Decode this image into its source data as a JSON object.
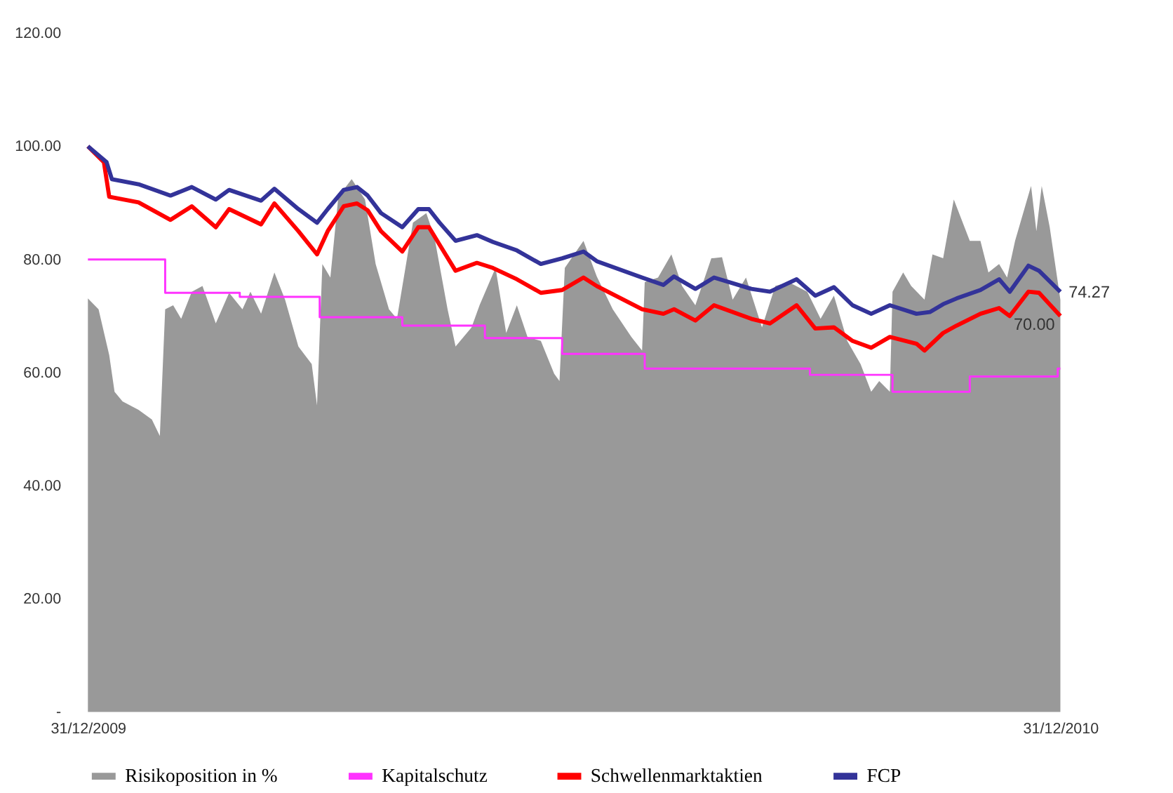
{
  "chart_data": {
    "type": "line",
    "xlim": [
      "2009-12-31",
      "2010-12-31"
    ],
    "xticks": [
      {
        "value": "2009-12-31",
        "label": "31/12/2009"
      },
      {
        "value": "2010-12-31",
        "label": "31/12/2010"
      }
    ],
    "ylim": [
      0,
      120
    ],
    "yticks": [
      {
        "value": 0,
        "label": "-"
      },
      {
        "value": 20,
        "label": "20.00"
      },
      {
        "value": 40,
        "label": "40.00"
      },
      {
        "value": 60,
        "label": "60.00"
      },
      {
        "value": 80,
        "label": "80.00"
      },
      {
        "value": 100,
        "label": "100.00"
      },
      {
        "value": 120,
        "label": "120.00"
      }
    ],
    "grid": false,
    "legend": "bottom",
    "line_style": "solid",
    "marker": "none",
    "series": [
      {
        "name": "Risikoposition in %",
        "type": "area",
        "color": "#999999",
        "x": [
          "2009-12-31",
          "2010-01-04",
          "2010-01-08",
          "2010-01-10",
          "2010-01-13",
          "2010-01-19",
          "2010-01-24",
          "2010-01-27",
          "2010-01-29",
          "2010-02-01",
          "2010-02-04",
          "2010-02-08",
          "2010-02-12",
          "2010-02-17",
          "2010-02-22",
          "2010-02-27",
          "2010-03-02",
          "2010-03-06",
          "2010-03-11",
          "2010-03-15",
          "2010-03-20",
          "2010-03-25",
          "2010-03-27",
          "2010-03-29",
          "2010-04-01",
          "2010-04-04",
          "2010-04-09",
          "2010-04-14",
          "2010-04-18",
          "2010-04-23",
          "2010-04-26",
          "2010-05-02",
          "2010-05-07",
          "2010-05-10",
          "2010-05-15",
          "2010-05-18",
          "2010-05-24",
          "2010-05-27",
          "2010-06-02",
          "2010-06-06",
          "2010-06-10",
          "2010-06-14",
          "2010-06-19",
          "2010-06-24",
          "2010-06-26",
          "2010-06-28",
          "2010-07-05",
          "2010-07-10",
          "2010-07-16",
          "2010-07-23",
          "2010-07-27",
          "2010-07-28",
          "2010-08-02",
          "2010-08-07",
          "2010-08-11",
          "2010-08-16",
          "2010-08-22",
          "2010-08-26",
          "2010-08-30",
          "2010-09-04",
          "2010-09-10",
          "2010-09-15",
          "2010-09-20",
          "2010-09-27",
          "2010-10-02",
          "2010-10-07",
          "2010-10-12",
          "2010-10-17",
          "2010-10-21",
          "2010-10-24",
          "2010-10-28",
          "2010-10-29",
          "2010-11-02",
          "2010-11-05",
          "2010-11-10",
          "2010-11-13",
          "2010-11-17",
          "2010-11-21",
          "2010-11-27",
          "2010-12-01",
          "2010-12-04",
          "2010-12-08",
          "2010-12-11",
          "2010-12-14",
          "2010-12-20",
          "2010-12-22",
          "2010-12-24",
          "2010-12-27",
          "2010-12-31"
        ],
        "values": [
          73.1,
          71.2,
          63.1,
          56.6,
          54.9,
          53.4,
          51.7,
          48.8,
          71.2,
          71.9,
          69.5,
          74.3,
          75.3,
          68.7,
          74.1,
          71.2,
          74.3,
          70.4,
          77.7,
          72.9,
          64.6,
          61.5,
          54.2,
          79.2,
          76.8,
          91.1,
          94.2,
          90.6,
          79.2,
          71.2,
          69.5,
          86.5,
          88.2,
          84.1,
          71.2,
          64.6,
          68.0,
          71.9,
          78.5,
          67.0,
          71.9,
          66.3,
          65.6,
          59.8,
          58.5,
          78.5,
          83.3,
          77.0,
          71.2,
          66.3,
          63.9,
          76.0,
          76.8,
          80.9,
          75.3,
          71.9,
          80.2,
          80.4,
          72.9,
          76.8,
          68.0,
          75.3,
          76.0,
          74.3,
          69.5,
          73.6,
          65.6,
          61.5,
          56.6,
          58.5,
          56.6,
          74.3,
          77.7,
          75.3,
          72.9,
          80.9,
          80.2,
          90.6,
          83.3,
          83.3,
          77.7,
          79.2,
          76.8,
          83.3,
          93.0,
          85.0,
          93.0,
          85.7,
          72.9
        ]
      },
      {
        "name": "Kapitalschutz",
        "type": "step",
        "color": "#ff33ff",
        "x": [
          "2009-12-31",
          "2010-01-29",
          "2010-02-26",
          "2010-03-28",
          "2010-04-28",
          "2010-05-29",
          "2010-06-27",
          "2010-07-28",
          "2010-09-28",
          "2010-10-29",
          "2010-11-27",
          "2010-12-30",
          "2010-12-31"
        ],
        "values": [
          80.0,
          74.1,
          73.4,
          69.8,
          68.3,
          66.1,
          63.3,
          60.7,
          59.6,
          56.6,
          59.3,
          60.7,
          60.7
        ]
      },
      {
        "name": "Schwellenmarktaktien",
        "color": "#ff0000",
        "x": [
          "2009-12-31",
          "2010-01-06",
          "2010-01-08",
          "2010-01-19",
          "2010-01-31",
          "2010-02-08",
          "2010-02-17",
          "2010-02-22",
          "2010-03-06",
          "2010-03-11",
          "2010-03-20",
          "2010-03-27",
          "2010-03-31",
          "2010-04-06",
          "2010-04-11",
          "2010-04-15",
          "2010-04-20",
          "2010-04-28",
          "2010-05-04",
          "2010-05-08",
          "2010-05-12",
          "2010-05-18",
          "2010-05-26",
          "2010-06-01",
          "2010-06-10",
          "2010-06-19",
          "2010-06-27",
          "2010-07-05",
          "2010-07-10",
          "2010-07-27",
          "2010-08-04",
          "2010-08-08",
          "2010-08-16",
          "2010-08-23",
          "2010-09-06",
          "2010-09-13",
          "2010-09-23",
          "2010-09-30",
          "2010-10-07",
          "2010-10-14",
          "2010-10-21",
          "2010-10-28",
          "2010-11-07",
          "2010-11-10",
          "2010-11-17",
          "2010-11-22",
          "2010-12-01",
          "2010-12-08",
          "2010-12-12",
          "2010-12-19",
          "2010-12-23",
          "2010-12-31"
        ],
        "values": [
          100.0,
          97.2,
          91.1,
          90.1,
          87.0,
          89.4,
          85.7,
          88.9,
          86.2,
          89.9,
          85.0,
          80.9,
          85.0,
          89.4,
          89.9,
          88.7,
          85.0,
          81.4,
          85.7,
          85.7,
          82.6,
          78.0,
          79.4,
          78.5,
          76.5,
          74.1,
          74.6,
          76.8,
          75.3,
          71.2,
          70.4,
          71.2,
          69.2,
          71.9,
          69.5,
          68.7,
          71.9,
          67.8,
          68.0,
          65.6,
          64.4,
          66.3,
          65.1,
          63.9,
          67.0,
          68.3,
          70.4,
          71.4,
          70.0,
          74.3,
          74.1,
          70.0
        ]
      },
      {
        "name": "FCP",
        "color": "#333399",
        "x": [
          "2009-12-31",
          "2010-01-07",
          "2010-01-09",
          "2010-01-19",
          "2010-01-31",
          "2010-02-08",
          "2010-02-17",
          "2010-02-22",
          "2010-03-06",
          "2010-03-11",
          "2010-03-20",
          "2010-03-27",
          "2010-03-31",
          "2010-04-06",
          "2010-04-11",
          "2010-04-15",
          "2010-04-20",
          "2010-04-28",
          "2010-05-04",
          "2010-05-08",
          "2010-05-12",
          "2010-05-18",
          "2010-05-26",
          "2010-06-01",
          "2010-06-10",
          "2010-06-19",
          "2010-06-27",
          "2010-07-05",
          "2010-07-10",
          "2010-07-27",
          "2010-08-04",
          "2010-08-08",
          "2010-08-16",
          "2010-08-23",
          "2010-09-06",
          "2010-09-13",
          "2010-09-23",
          "2010-09-30",
          "2010-10-07",
          "2010-10-14",
          "2010-10-21",
          "2010-10-28",
          "2010-11-07",
          "2010-11-12",
          "2010-11-17",
          "2010-11-22",
          "2010-12-01",
          "2010-12-08",
          "2010-12-12",
          "2010-12-19",
          "2010-12-23",
          "2010-12-31"
        ],
        "values": [
          100.0,
          97.2,
          94.2,
          93.3,
          91.3,
          92.8,
          90.6,
          92.3,
          90.4,
          92.5,
          88.9,
          86.5,
          88.9,
          92.3,
          92.8,
          91.3,
          88.2,
          85.7,
          88.9,
          88.9,
          86.5,
          83.3,
          84.3,
          83.1,
          81.6,
          79.2,
          80.2,
          81.4,
          79.7,
          76.8,
          75.5,
          77.0,
          74.8,
          76.8,
          74.8,
          74.3,
          76.5,
          73.6,
          75.1,
          71.9,
          70.4,
          71.9,
          70.4,
          70.7,
          72.1,
          73.1,
          74.6,
          76.5,
          74.3,
          78.9,
          78.0,
          74.27
        ]
      }
    ],
    "annotations": [
      {
        "text": "74.27",
        "x": "2010-12-31",
        "y": 74.27
      },
      {
        "text": "70.00",
        "x": "2010-12-31",
        "y": 70.0
      }
    ]
  }
}
